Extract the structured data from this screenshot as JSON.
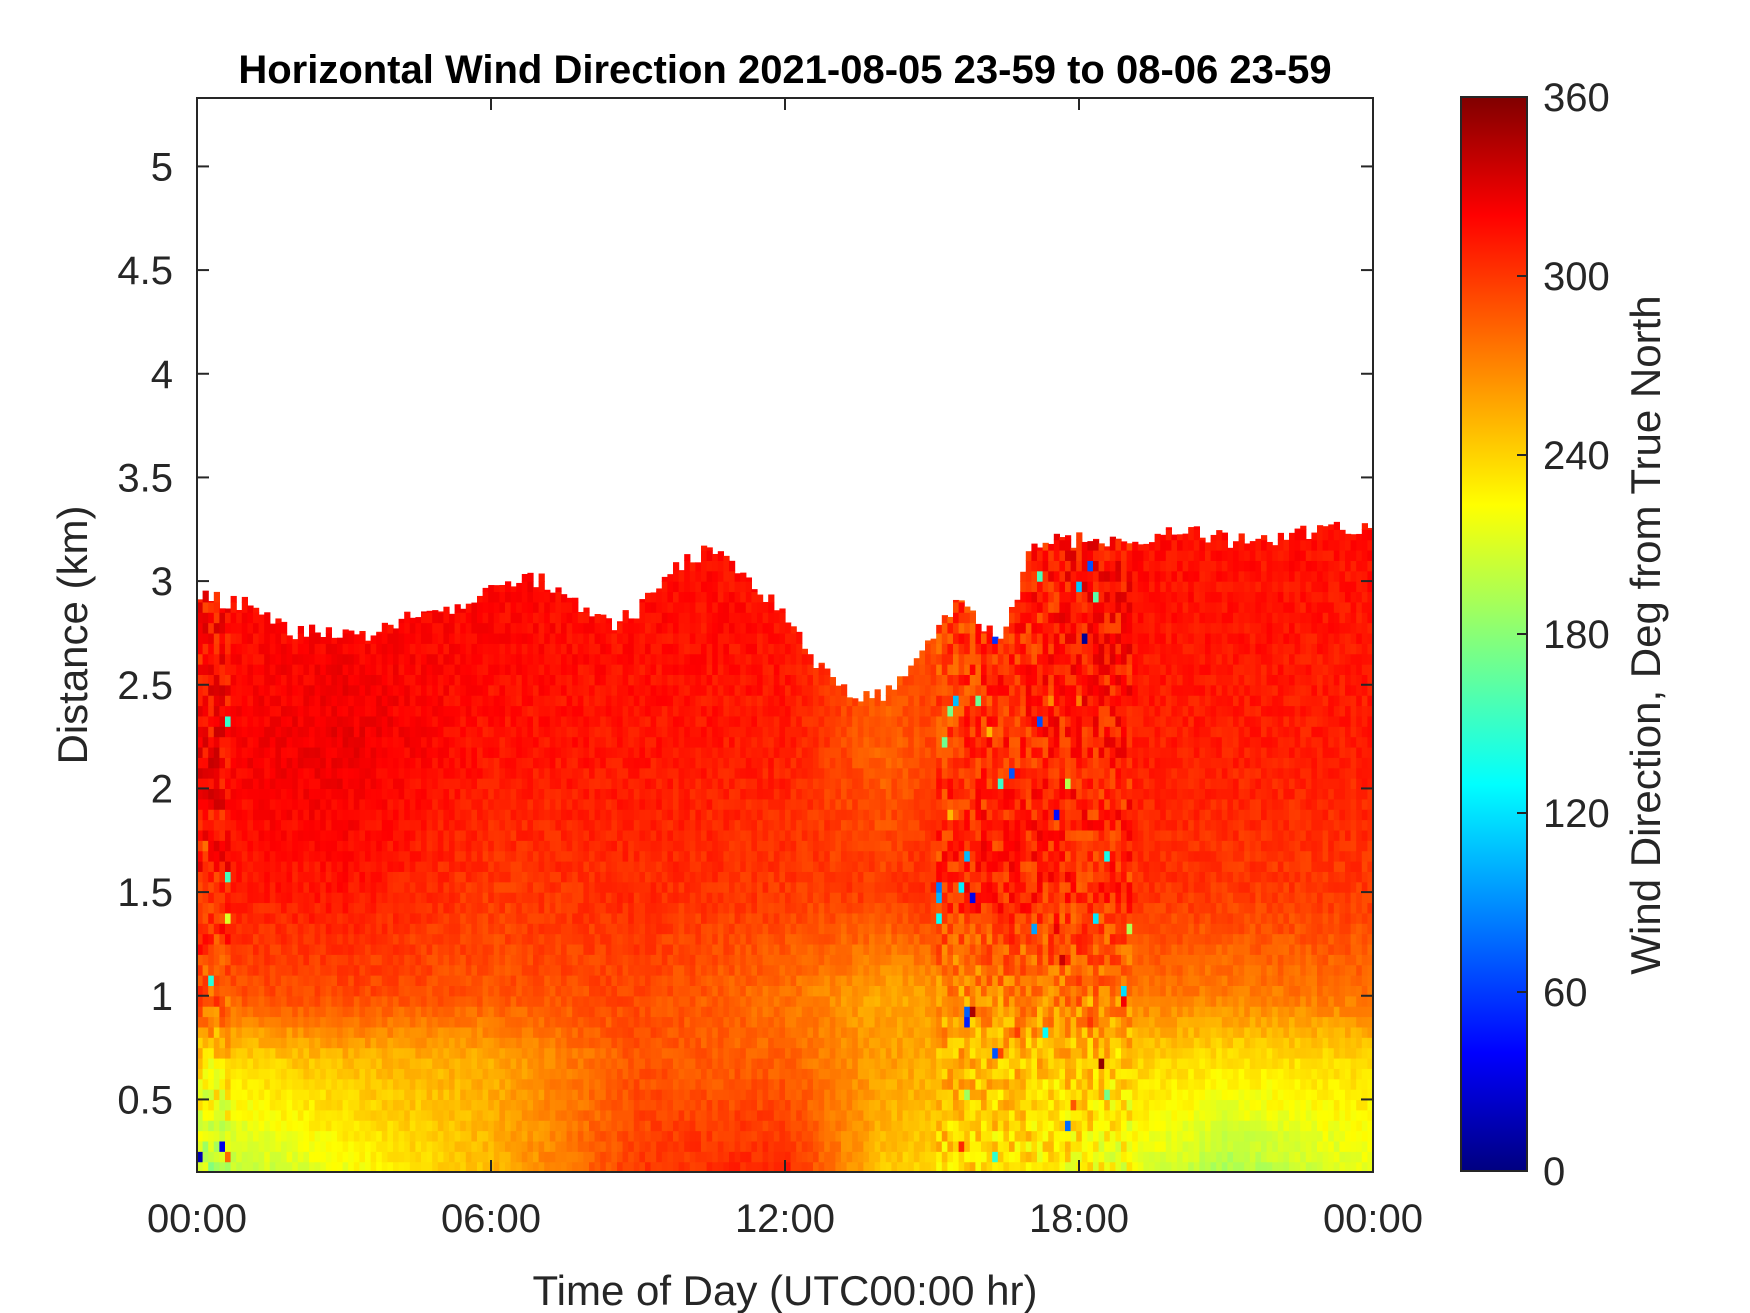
{
  "chart_data": {
    "type": "heatmap",
    "title": "Horizontal Wind Direction 2021-08-05 23-59 to 08-06 23-59",
    "xlabel": "Time of Day (UTC00:00 hr)",
    "ylabel": "Distance (km)",
    "colorbar_label": "Wind Direction, Deg from True North",
    "colormap": "jet",
    "grid": false,
    "x_tick_labels": [
      "00:00",
      "06:00",
      "12:00",
      "18:00",
      "00:00"
    ],
    "x_range_hours": [
      0,
      24
    ],
    "y_ticks": [
      0.5,
      1,
      1.5,
      2,
      2.5,
      3,
      3.5,
      4,
      4.5,
      5
    ],
    "y_tick_labels": [
      "0.5",
      "1",
      "1.5",
      "2",
      "2.5",
      "3",
      "3.5",
      "4",
      "4.5",
      "5"
    ],
    "ylim": [
      0.15,
      5.33
    ],
    "colorbar_ticks": [
      0,
      60,
      120,
      180,
      240,
      300,
      360
    ],
    "colorbar_tick_labels": [
      "0",
      "60",
      "120",
      "180",
      "240",
      "300",
      "360"
    ],
    "clim": [
      0,
      360
    ],
    "data_top_km": [
      [
        0,
        2.95
      ],
      [
        0.5,
        2.9
      ],
      [
        1,
        2.9
      ],
      [
        1.5,
        2.8
      ],
      [
        2,
        2.75
      ],
      [
        2.5,
        2.75
      ],
      [
        3,
        2.75
      ],
      [
        3.5,
        2.75
      ],
      [
        4,
        2.8
      ],
      [
        4.5,
        2.85
      ],
      [
        5,
        2.85
      ],
      [
        5.5,
        2.9
      ],
      [
        6,
        2.95
      ],
      [
        6.5,
        3.0
      ],
      [
        7,
        3.0
      ],
      [
        7.5,
        2.95
      ],
      [
        8,
        2.85
      ],
      [
        8.5,
        2.8
      ],
      [
        9,
        2.85
      ],
      [
        9.5,
        3.0
      ],
      [
        10,
        3.1
      ],
      [
        10.5,
        3.15
      ],
      [
        11,
        3.05
      ],
      [
        11.5,
        2.95
      ],
      [
        12,
        2.85
      ],
      [
        12.5,
        2.65
      ],
      [
        13,
        2.5
      ],
      [
        13.5,
        2.45
      ],
      [
        14,
        2.45
      ],
      [
        14.5,
        2.55
      ],
      [
        15,
        2.7
      ],
      [
        15.5,
        2.9
      ],
      [
        16,
        2.8
      ],
      [
        16.5,
        2.75
      ],
      [
        17,
        3.15
      ],
      [
        17.5,
        3.2
      ],
      [
        18,
        3.2
      ],
      [
        19,
        3.2
      ],
      [
        20,
        3.25
      ],
      [
        21,
        3.2
      ],
      [
        22,
        3.2
      ],
      [
        23,
        3.25
      ],
      [
        24,
        3.25
      ]
    ],
    "direction_profile_deg": [
      {
        "time_h": 0,
        "values": [
          [
            0.15,
            195
          ],
          [
            0.7,
            235
          ],
          [
            1.0,
            285
          ],
          [
            1.5,
            305
          ],
          [
            2.1,
            315
          ],
          [
            2.8,
            310
          ]
        ]
      },
      {
        "time_h": 3,
        "values": [
          [
            0.15,
            220
          ],
          [
            0.7,
            250
          ],
          [
            1.0,
            290
          ],
          [
            1.5,
            308
          ],
          [
            2.2,
            322
          ],
          [
            2.8,
            315
          ]
        ]
      },
      {
        "time_h": 6,
        "values": [
          [
            0.15,
            250
          ],
          [
            0.7,
            255
          ],
          [
            1.0,
            285
          ],
          [
            1.5,
            295
          ],
          [
            2.2,
            308
          ],
          [
            3.0,
            315
          ]
        ]
      },
      {
        "time_h": 9,
        "values": [
          [
            0.15,
            295
          ],
          [
            0.7,
            285
          ],
          [
            1.0,
            290
          ],
          [
            1.5,
            300
          ],
          [
            2.2,
            308
          ],
          [
            3.0,
            312
          ]
        ]
      },
      {
        "time_h": 12,
        "values": [
          [
            0.15,
            305
          ],
          [
            0.7,
            280
          ],
          [
            1.0,
            275
          ],
          [
            1.5,
            295
          ],
          [
            2.2,
            305
          ],
          [
            2.8,
            310
          ]
        ]
      },
      {
        "time_h": 14,
        "values": [
          [
            0.15,
            245
          ],
          [
            0.7,
            260
          ],
          [
            1.0,
            255
          ],
          [
            1.5,
            295
          ],
          [
            2.2,
            280
          ],
          [
            2.5,
            285
          ]
        ]
      },
      {
        "time_h": 16,
        "values": [
          [
            0.15,
            235
          ],
          [
            0.7,
            250
          ],
          [
            1.0,
            265
          ],
          [
            1.5,
            305
          ],
          [
            2.2,
            300
          ],
          [
            2.8,
            295
          ]
        ]
      },
      {
        "time_h": 18,
        "values": [
          [
            0.15,
            230
          ],
          [
            0.7,
            245
          ],
          [
            1.0,
            275
          ],
          [
            1.5,
            300
          ],
          [
            2.2,
            305
          ],
          [
            3.2,
            312
          ]
        ]
      },
      {
        "time_h": 21,
        "values": [
          [
            0.15,
            195
          ],
          [
            0.7,
            235
          ],
          [
            1.0,
            270
          ],
          [
            1.5,
            295
          ],
          [
            2.2,
            305
          ],
          [
            3.2,
            310
          ]
        ]
      },
      {
        "time_h": 24,
        "values": [
          [
            0.15,
            215
          ],
          [
            0.7,
            240
          ],
          [
            1.0,
            275
          ],
          [
            1.5,
            295
          ],
          [
            2.2,
            305
          ],
          [
            3.2,
            310
          ]
        ]
      }
    ]
  }
}
